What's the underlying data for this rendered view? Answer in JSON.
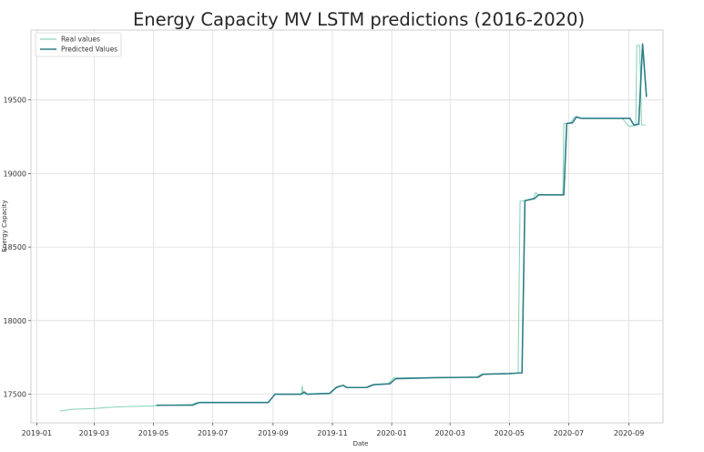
{
  "chart_data": {
    "type": "line",
    "title": "Energy Capacity MV LSTM predictions (2016-2020)",
    "xlabel": "Date",
    "ylabel": "Energy Capacity",
    "x_ticks": [
      "2019-01",
      "2019-03",
      "2019-05",
      "2019-07",
      "2019-09",
      "2019-11",
      "2020-01",
      "2020-03",
      "2020-05",
      "2020-07",
      "2020-09"
    ],
    "y_ticks": [
      17500,
      18000,
      18500,
      19000,
      19500
    ],
    "xlim": [
      "2018-12-26",
      "2020-10-06"
    ],
    "ylim": [
      17305,
      19975
    ],
    "grid": true,
    "legend_position": "top-left",
    "series": [
      {
        "name": "Real values",
        "color": "#8fd3bd",
        "points": [
          [
            "2019-01-25",
            17385
          ],
          [
            "2019-02-01",
            17392
          ],
          [
            "2019-02-05",
            17397
          ],
          [
            "2019-03-01",
            17402
          ],
          [
            "2019-03-15",
            17410
          ],
          [
            "2019-04-01",
            17415
          ],
          [
            "2019-05-01",
            17420
          ],
          [
            "2019-05-15",
            17425
          ],
          [
            "2019-06-10",
            17430
          ],
          [
            "2019-06-14",
            17442
          ],
          [
            "2019-07-01",
            17443
          ],
          [
            "2019-08-27",
            17443
          ],
          [
            "2019-09-03",
            17500
          ],
          [
            "2019-09-30",
            17500
          ],
          [
            "2019-10-01",
            17555
          ],
          [
            "2019-10-02",
            17505
          ],
          [
            "2019-10-05",
            17500
          ],
          [
            "2019-10-30",
            17505
          ],
          [
            "2019-11-05",
            17550
          ],
          [
            "2019-11-12",
            17560
          ],
          [
            "2019-11-15",
            17545
          ],
          [
            "2019-12-05",
            17545
          ],
          [
            "2019-12-12",
            17565
          ],
          [
            "2019-12-28",
            17570
          ],
          [
            "2020-01-03",
            17610
          ],
          [
            "2020-02-15",
            17612
          ],
          [
            "2020-03-28",
            17615
          ],
          [
            "2020-04-02",
            17635
          ],
          [
            "2020-05-01",
            17640
          ],
          [
            "2020-05-10",
            17645
          ],
          [
            "2020-05-12",
            18810
          ],
          [
            "2020-05-26",
            18830
          ],
          [
            "2020-05-28",
            18870
          ],
          [
            "2020-05-31",
            18855
          ],
          [
            "2020-06-25",
            18855
          ],
          [
            "2020-06-26",
            19340
          ],
          [
            "2020-07-03",
            19345
          ],
          [
            "2020-07-07",
            19385
          ],
          [
            "2020-07-12",
            19375
          ],
          [
            "2020-08-25",
            19375
          ],
          [
            "2020-09-01",
            19320
          ],
          [
            "2020-09-08",
            19325
          ],
          [
            "2020-09-09",
            19870
          ],
          [
            "2020-09-12",
            19870
          ],
          [
            "2020-09-14",
            19330
          ],
          [
            "2020-09-18",
            19330
          ]
        ]
      },
      {
        "name": "Predicted Values",
        "color": "#2b7f86",
        "points": [
          [
            "2019-05-04",
            17425
          ],
          [
            "2019-06-10",
            17425
          ],
          [
            "2019-06-17",
            17443
          ],
          [
            "2019-08-27",
            17443
          ],
          [
            "2019-09-03",
            17500
          ],
          [
            "2019-09-30",
            17500
          ],
          [
            "2019-10-03",
            17515
          ],
          [
            "2019-10-06",
            17500
          ],
          [
            "2019-10-29",
            17505
          ],
          [
            "2019-11-05",
            17545
          ],
          [
            "2019-11-12",
            17560
          ],
          [
            "2019-11-16",
            17545
          ],
          [
            "2019-12-06",
            17545
          ],
          [
            "2019-12-14",
            17565
          ],
          [
            "2019-12-30",
            17570
          ],
          [
            "2020-01-05",
            17605
          ],
          [
            "2020-02-15",
            17612
          ],
          [
            "2020-03-30",
            17615
          ],
          [
            "2020-04-04",
            17635
          ],
          [
            "2020-05-01",
            17640
          ],
          [
            "2020-05-14",
            17645
          ],
          [
            "2020-05-17",
            18815
          ],
          [
            "2020-05-27",
            18830
          ],
          [
            "2020-05-31",
            18855
          ],
          [
            "2020-06-26",
            18855
          ],
          [
            "2020-06-29",
            19340
          ],
          [
            "2020-07-05",
            19345
          ],
          [
            "2020-07-09",
            19385
          ],
          [
            "2020-07-14",
            19375
          ],
          [
            "2020-09-02",
            19375
          ],
          [
            "2020-09-06",
            19330
          ],
          [
            "2020-09-11",
            19335
          ],
          [
            "2020-09-15",
            19880
          ],
          [
            "2020-09-19",
            19520
          ]
        ]
      }
    ]
  }
}
